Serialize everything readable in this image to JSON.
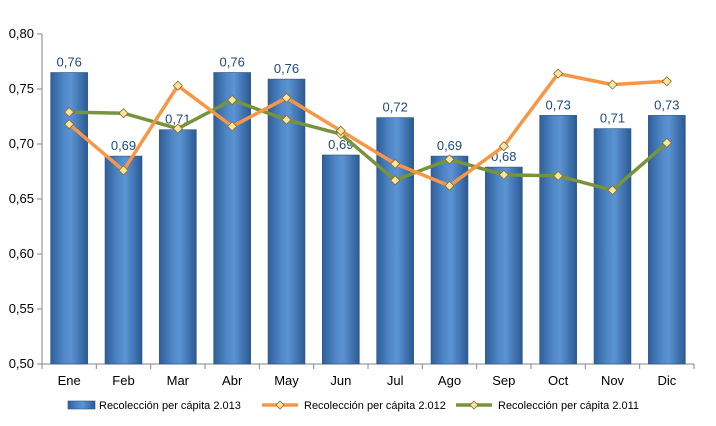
{
  "chart_data": {
    "type": "bar",
    "categories": [
      "Ene",
      "Feb",
      "Mar",
      "Abr",
      "May",
      "Jun",
      "Jul",
      "Ago",
      "Sep",
      "Oct",
      "Nov",
      "Dic"
    ],
    "ylim": [
      0.5,
      0.8
    ],
    "yticks": [
      "0,50",
      "0,55",
      "0,60",
      "0,65",
      "0,70",
      "0,75",
      "0,80"
    ],
    "grid": false,
    "legend_position": "bottom",
    "series": [
      {
        "name": "Recolección per cápita 2.013",
        "type": "bar",
        "color": "#4F81BD",
        "values": [
          0.765,
          0.689,
          0.713,
          0.765,
          0.759,
          0.69,
          0.724,
          0.689,
          0.679,
          0.726,
          0.714,
          0.726
        ],
        "data_labels": [
          "0,76",
          "0,69",
          "0,71",
          "0,76",
          "0,76",
          "0,69",
          "0,72",
          "0,69",
          "0,68",
          "0,73",
          "0,71",
          "0,73"
        ]
      },
      {
        "name": "Recolección per cápita 2.012",
        "type": "line",
        "color": "#F79646",
        "values": [
          0.718,
          0.676,
          0.753,
          0.716,
          0.742,
          0.712,
          0.682,
          0.662,
          0.698,
          0.764,
          0.754,
          0.757
        ]
      },
      {
        "name": "Recolección per cápita 2.011",
        "type": "line",
        "color": "#77933C",
        "values": [
          0.729,
          0.728,
          0.714,
          0.74,
          0.722,
          0.709,
          0.667,
          0.686,
          0.672,
          0.671,
          0.658,
          0.701
        ]
      }
    ]
  }
}
